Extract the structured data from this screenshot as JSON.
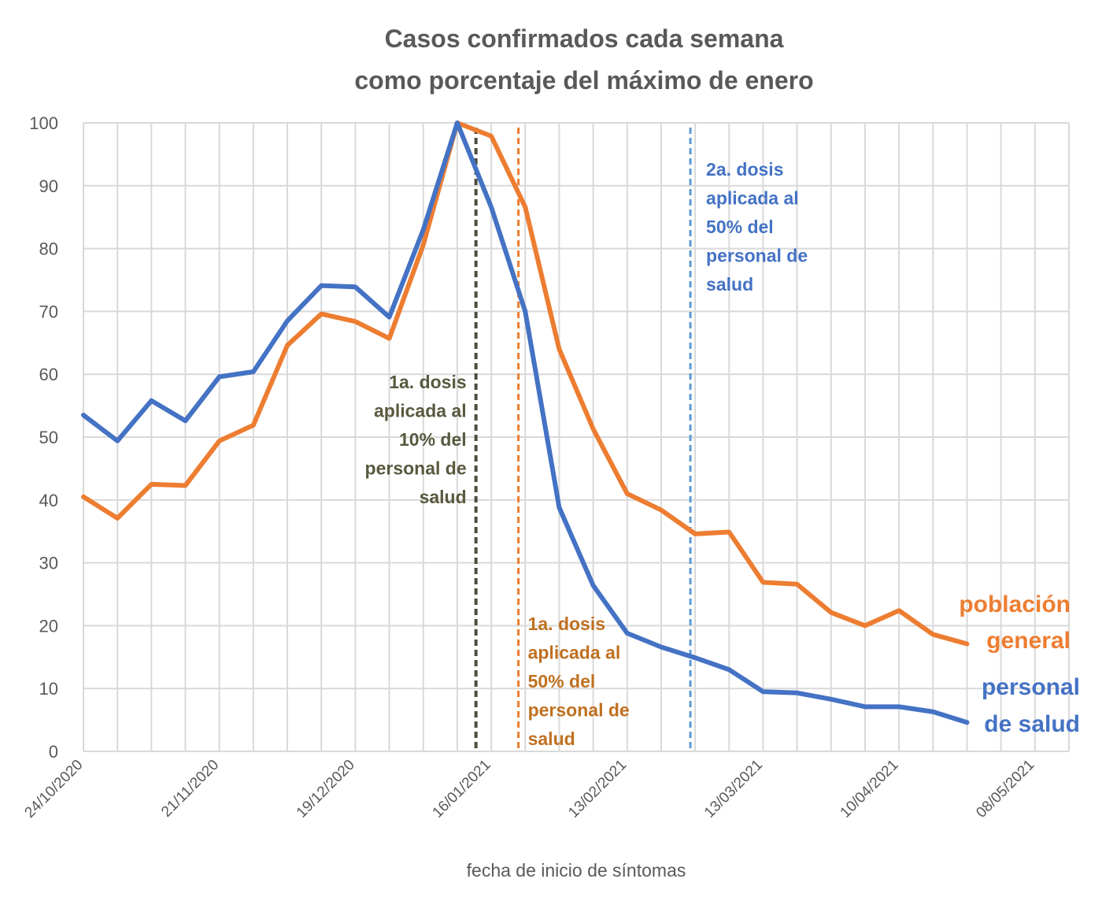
{
  "chart_data": {
    "type": "line",
    "title_lines": [
      "Casos confirmados cada semana",
      "como porcentaje del máximo de enero"
    ],
    "xlabel": "fecha de inicio de síntomas",
    "ylabel": "",
    "ylim": [
      0,
      100
    ],
    "yticks": [
      0,
      10,
      20,
      30,
      40,
      50,
      60,
      70,
      80,
      90,
      100
    ],
    "grid": true,
    "x_unit": "week index from 24/10/2020",
    "xlim": [
      0,
      29
    ],
    "xtick_positions": [
      0,
      4,
      8,
      12,
      16,
      20,
      24,
      28
    ],
    "xtick_labels": [
      "24/10/2020",
      "21/11/2020",
      "19/12/2020",
      "16/01/2021",
      "13/02/2021",
      "13/03/2021",
      "10/04/2021",
      "08/05/2021"
    ],
    "x": [
      0,
      1,
      2,
      3,
      4,
      5,
      6,
      7,
      8,
      9,
      10,
      11,
      12,
      13,
      14,
      15,
      16,
      17,
      18,
      19,
      20,
      21,
      22,
      23,
      24,
      25,
      26
    ],
    "series": [
      {
        "name": "personal de salud",
        "label_lines": [
          "personal",
          "de salud"
        ],
        "color": "#4472C4",
        "values": [
          53.5,
          49.4,
          55.8,
          52.6,
          59.6,
          60.4,
          68.5,
          74.1,
          73.9,
          69.1,
          83.0,
          100.0,
          86.6,
          70.0,
          38.8,
          26.4,
          18.8,
          16.6,
          14.9,
          13.0,
          9.5,
          9.3,
          8.3,
          7.1,
          7.1,
          6.3,
          4.6
        ]
      },
      {
        "name": "población general",
        "label_lines": [
          "población",
          "general"
        ],
        "color": "#ED7D31",
        "values": [
          40.5,
          37.1,
          42.5,
          42.3,
          49.4,
          51.9,
          64.6,
          69.6,
          68.4,
          65.7,
          80.6,
          100.0,
          97.9,
          86.6,
          64.0,
          51.3,
          41.0,
          38.4,
          34.6,
          34.9,
          26.9,
          26.6,
          22.1,
          20.0,
          22.4,
          18.6,
          17.1
        ]
      }
    ],
    "annotations": [
      {
        "name": "1a-dosis-10",
        "x": 11.55,
        "color": "#4D4D40",
        "text_color": "#595940",
        "align": "right",
        "lines": [
          "1a. dosis",
          "aplicada al",
          "10% del",
          "personal de",
          "salud"
        ]
      },
      {
        "name": "1a-dosis-50",
        "x": 12.8,
        "color": "#ED7D31",
        "text_color": "#C07020",
        "align": "left",
        "lines": [
          "1a. dosis",
          "aplicada al",
          "50% del",
          "personal de",
          "salud"
        ]
      },
      {
        "name": "2a-dosis-50",
        "x": 17.86,
        "color": "#5B9BD5",
        "text_color": "#4472C4",
        "align": "left",
        "lines": [
          "2a. dosis",
          "aplicada al",
          "50% del",
          "personal de",
          "salud"
        ]
      }
    ]
  }
}
